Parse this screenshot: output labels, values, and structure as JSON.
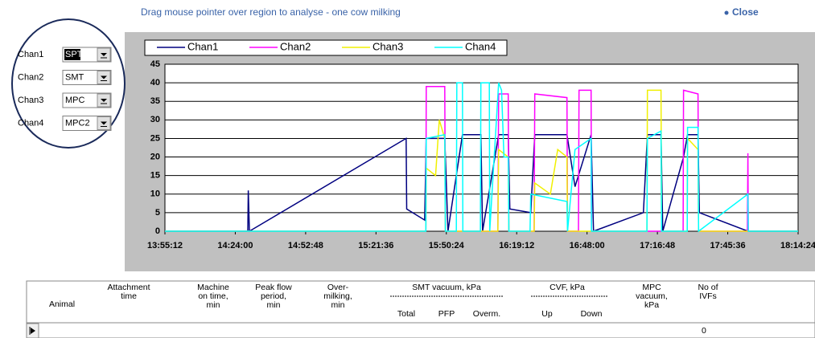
{
  "header": {
    "title": "Drag mouse pointer over region to analyse - one cow milking",
    "close": "Close"
  },
  "channels": [
    {
      "label": "Chan1",
      "value": "SPT"
    },
    {
      "label": "Chan2",
      "value": "SMT"
    },
    {
      "label": "Chan3",
      "value": "MPC"
    },
    {
      "label": "Chan4",
      "value": "MPC2"
    }
  ],
  "chart_data": {
    "type": "line",
    "xlim": [
      "13:55:12",
      "18:14:24"
    ],
    "xticks": [
      "13:55:12",
      "14:24:00",
      "14:52:48",
      "15:21:36",
      "15:50:24",
      "16:19:12",
      "16:48:00",
      "17:16:48",
      "17:45:36",
      "18:14:24"
    ],
    "ylim": [
      0,
      45
    ],
    "yticks": [
      0,
      5,
      10,
      15,
      20,
      25,
      30,
      35,
      40,
      45
    ],
    "grid": true,
    "series": [
      {
        "name": "Chan1",
        "color": "#000080",
        "x": [
          "13:55:12",
          "14:29:07",
          "14:29:20",
          "14:29:46",
          "15:33:57",
          "15:34:10",
          "15:41:31",
          "15:42:11",
          "15:49:45",
          "15:51:04",
          "15:56:59",
          "16:04:33",
          "16:05:13",
          "16:11:48",
          "16:15:45",
          "16:16:24",
          "16:24:58",
          "16:26:37",
          "16:39:47",
          "16:43:04",
          "16:49:39",
          "16:50:38",
          "17:11:03",
          "17:12:42",
          "17:18:17",
          "17:19:00",
          "17:27:30",
          "17:29:09",
          "17:33:26",
          "17:34:00",
          "17:53:50",
          "18:14:24"
        ],
        "values": [
          0,
          0,
          11,
          0,
          25,
          6,
          3,
          25,
          25,
          0,
          26,
          26,
          0,
          26,
          26,
          6,
          5,
          26,
          26,
          12,
          26,
          0,
          5,
          26,
          26,
          0,
          20,
          26,
          26,
          5,
          0,
          0
        ]
      },
      {
        "name": "Chan2",
        "color": "#ff00ff",
        "x": [
          "13:55:12",
          "15:42:00",
          "15:42:11",
          "15:49:45",
          "15:50:00",
          "16:11:30",
          "16:11:48",
          "16:15:45",
          "16:16:00",
          "16:26:20",
          "16:26:37",
          "16:39:47",
          "16:40:00",
          "16:44:30",
          "16:44:43",
          "16:49:39",
          "16:49:50",
          "17:27:20",
          "17:27:30",
          "17:33:26",
          "17:33:40",
          "17:53:40",
          "17:53:50",
          "17:54:00",
          "18:14:24"
        ],
        "values": [
          0,
          0,
          39,
          39,
          0,
          0,
          37,
          37,
          0,
          0,
          37,
          36,
          0,
          0,
          38,
          38,
          0,
          0,
          38,
          37,
          0,
          0,
          21,
          0,
          0
        ]
      },
      {
        "name": "Chan3",
        "color": "#f0f000",
        "x": [
          "13:55:12",
          "15:42:00",
          "15:42:11",
          "15:46:00",
          "15:47:30",
          "15:49:45",
          "15:50:00",
          "16:11:30",
          "16:11:48",
          "16:15:45",
          "16:16:00",
          "16:26:20",
          "16:26:37",
          "16:33:00",
          "16:36:00",
          "16:39:47",
          "16:40:00",
          "17:12:30",
          "17:12:42",
          "17:18:17",
          "17:18:30",
          "17:29:00",
          "17:29:09",
          "17:33:26",
          "17:33:40",
          "18:14:24"
        ],
        "values": [
          0,
          0,
          17,
          15,
          30,
          25,
          0,
          0,
          22,
          20,
          0,
          0,
          13,
          10,
          22,
          20,
          0,
          0,
          38,
          38,
          0,
          0,
          25,
          22,
          0,
          0
        ]
      },
      {
        "name": "Chan4",
        "color": "#00ffff",
        "x": [
          "13:55:12",
          "15:42:00",
          "15:42:11",
          "15:49:45",
          "15:50:00",
          "15:54:30",
          "15:54:41",
          "15:56:59",
          "15:57:10",
          "16:04:20",
          "16:04:33",
          "16:08:00",
          "16:08:10",
          "16:11:48",
          "16:13:00",
          "16:14:00",
          "16:15:45",
          "16:16:00",
          "16:24:40",
          "16:24:58",
          "16:39:47",
          "16:40:00",
          "16:43:04",
          "16:49:39",
          "16:49:50",
          "17:12:30",
          "17:12:42",
          "17:18:17",
          "17:18:30",
          "17:29:00",
          "17:29:09",
          "17:33:26",
          "17:33:40",
          "17:53:50",
          "17:54:00",
          "18:14:24"
        ],
        "values": [
          0,
          0,
          25,
          26,
          0,
          0,
          40,
          40,
          0,
          0,
          40,
          40,
          0,
          40,
          38,
          20,
          20,
          0,
          0,
          10,
          8,
          0,
          22,
          25,
          0,
          0,
          25,
          27,
          0,
          0,
          28,
          28,
          0,
          10,
          0,
          0
        ]
      }
    ]
  },
  "table": {
    "headers": [
      {
        "lines": [
          "Animal"
        ]
      },
      {
        "lines": [
          "Attachment",
          "time"
        ]
      },
      {
        "lines": [
          "Machine",
          "on time,",
          "min"
        ]
      },
      {
        "lines": [
          "Peak flow",
          "period,",
          "min"
        ]
      },
      {
        "lines": [
          "Over-",
          "milking,",
          "min"
        ]
      },
      {
        "lines": [
          "SMT vacuum, kPa"
        ],
        "sub": [
          "Total",
          "PFP",
          "Overm."
        ]
      },
      {
        "lines": [
          "CVF, kPa"
        ],
        "sub": [
          "Up",
          "Down"
        ]
      },
      {
        "lines": [
          "MPC",
          "vacuum,",
          "kPa"
        ]
      },
      {
        "lines": [
          "No of",
          "IVFs"
        ]
      }
    ],
    "rows": [
      {
        "ivfs": 0
      }
    ]
  }
}
